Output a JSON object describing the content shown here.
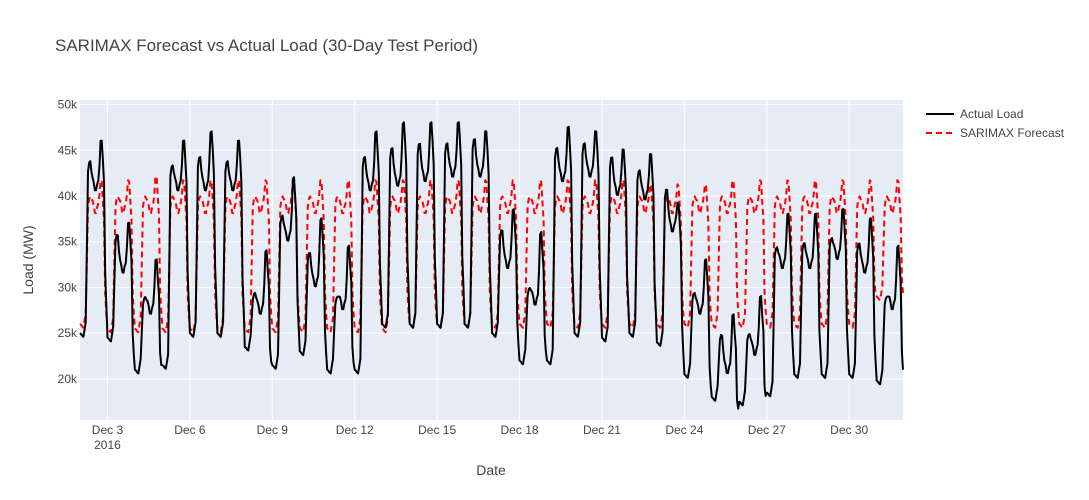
{
  "chart_data": {
    "type": "line",
    "title": "SARIMAX Forecast vs Actual Load (30-Day Test Period)",
    "xlabel": "Date",
    "ylabel": "Load (MW)",
    "x_start": "2016-12-02",
    "x_end": "2016-12-31T23:00",
    "ylim": [
      15500,
      50500
    ],
    "y_ticks": [
      20000,
      25000,
      30000,
      35000,
      40000,
      45000,
      50000
    ],
    "y_tick_labels": [
      "20k",
      "25k",
      "30k",
      "35k",
      "40k",
      "45k",
      "50k"
    ],
    "x_ticks": [
      "2016-12-03",
      "2016-12-06",
      "2016-12-09",
      "2016-12-12",
      "2016-12-15",
      "2016-12-18",
      "2016-12-21",
      "2016-12-24",
      "2016-12-27",
      "2016-12-30"
    ],
    "x_tick_labels": [
      "Dec 3",
      "Dec 6",
      "Dec 9",
      "Dec 12",
      "Dec 15",
      "Dec 18",
      "Dec 21",
      "Dec 24",
      "Dec 27",
      "Dec 30"
    ],
    "x_tick_year_label": "2016",
    "grid": true,
    "legend_position": "top-right",
    "series": [
      {
        "name": "Actual Load",
        "color": "#000000",
        "style": "solid",
        "daily": [
          {
            "date": "2016-12-02",
            "peak1": 44000,
            "mid": 40500,
            "peak2": 46500,
            "night": 25000
          },
          {
            "date": "2016-12-03",
            "peak1": 36000,
            "mid": 31500,
            "peak2": 37500,
            "night": 24500
          },
          {
            "date": "2016-12-04",
            "peak1": 29000,
            "mid": 27000,
            "peak2": 33500,
            "night": 21000
          },
          {
            "date": "2016-12-05",
            "peak1": 43500,
            "mid": 40500,
            "peak2": 46500,
            "night": 21500
          },
          {
            "date": "2016-12-06",
            "peak1": 44500,
            "mid": 40500,
            "peak2": 47500,
            "night": 25000
          },
          {
            "date": "2016-12-07",
            "peak1": 44000,
            "mid": 40500,
            "peak2": 46500,
            "night": 25000
          },
          {
            "date": "2016-12-08",
            "peak1": 29500,
            "mid": 27000,
            "peak2": 34500,
            "night": 23500
          },
          {
            "date": "2016-12-09",
            "peak1": 38000,
            "mid": 35000,
            "peak2": 42500,
            "night": 21500
          },
          {
            "date": "2016-12-10",
            "peak1": 34000,
            "mid": 30000,
            "peak2": 38000,
            "night": 23000
          },
          {
            "date": "2016-12-11",
            "peak1": 29000,
            "mid": 27500,
            "peak2": 35000,
            "night": 21000
          },
          {
            "date": "2016-12-12",
            "peak1": 44500,
            "mid": 40500,
            "peak2": 47500,
            "night": 21000
          },
          {
            "date": "2016-12-13",
            "peak1": 45500,
            "mid": 41000,
            "peak2": 48500,
            "night": 26000
          },
          {
            "date": "2016-12-14",
            "peak1": 46000,
            "mid": 41500,
            "peak2": 48500,
            "night": 26000
          },
          {
            "date": "2016-12-15",
            "peak1": 46000,
            "mid": 42000,
            "peak2": 48500,
            "night": 26000
          },
          {
            "date": "2016-12-16",
            "peak1": 46500,
            "mid": 42000,
            "peak2": 47500,
            "night": 26000
          },
          {
            "date": "2016-12-17",
            "peak1": 36500,
            "mid": 32000,
            "peak2": 39000,
            "night": 25000
          },
          {
            "date": "2016-12-18",
            "peak1": 30000,
            "mid": 28000,
            "peak2": 36500,
            "night": 22000
          },
          {
            "date": "2016-12-19",
            "peak1": 45500,
            "mid": 41500,
            "peak2": 48000,
            "night": 22000
          },
          {
            "date": "2016-12-20",
            "peak1": 46000,
            "mid": 42000,
            "peak2": 47500,
            "night": 25000
          },
          {
            "date": "2016-12-21",
            "peak1": 44500,
            "mid": 40000,
            "peak2": 45500,
            "night": 24500
          },
          {
            "date": "2016-12-22",
            "peak1": 43000,
            "mid": 39500,
            "peak2": 45000,
            "night": 25000
          },
          {
            "date": "2016-12-23",
            "peak1": 41000,
            "mid": 36000,
            "peak2": 39500,
            "night": 24000
          },
          {
            "date": "2016-12-24",
            "peak1": 29500,
            "mid": 27000,
            "peak2": 33500,
            "night": 20500
          },
          {
            "date": "2016-12-25",
            "peak1": 25000,
            "mid": 20500,
            "peak2": 27500,
            "night": 18000
          },
          {
            "date": "2016-12-26",
            "peak1": 25000,
            "mid": 22500,
            "peak2": 29500,
            "night": 17500
          },
          {
            "date": "2016-12-27",
            "peak1": 34500,
            "mid": 32000,
            "peak2": 38500,
            "night": 18500
          },
          {
            "date": "2016-12-28",
            "peak1": 35000,
            "mid": 32000,
            "peak2": 38500,
            "night": 20500
          },
          {
            "date": "2016-12-29",
            "peak1": 35500,
            "mid": 33000,
            "peak2": 39000,
            "night": 20500
          },
          {
            "date": "2016-12-30",
            "peak1": 35000,
            "mid": 31500,
            "peak2": 38000,
            "night": 20500
          },
          {
            "date": "2016-12-31",
            "peak1": 29000,
            "mid": 27500,
            "peak2": 35000,
            "night": 19800
          }
        ]
      },
      {
        "name": "SARIMAX Forecast",
        "color": "#ff0000",
        "style": "dashed",
        "daily": [
          {
            "date": "2016-12-02",
            "peak1": 40000,
            "mid": 38000,
            "peak2": 42000,
            "night": 26000
          },
          {
            "date": "2016-12-03",
            "peak1": 40000,
            "mid": 38000,
            "peak2": 42000,
            "night": 25500
          },
          {
            "date": "2016-12-04",
            "peak1": 40000,
            "mid": 38000,
            "peak2": 42500,
            "night": 25500
          },
          {
            "date": "2016-12-05",
            "peak1": 40000,
            "mid": 38000,
            "peak2": 42000,
            "night": 25500
          },
          {
            "date": "2016-12-06",
            "peak1": 40000,
            "mid": 38000,
            "peak2": 42000,
            "night": 25500
          },
          {
            "date": "2016-12-07",
            "peak1": 40000,
            "mid": 38000,
            "peak2": 42000,
            "night": 25500
          },
          {
            "date": "2016-12-08",
            "peak1": 40000,
            "mid": 38000,
            "peak2": 42000,
            "night": 25500
          },
          {
            "date": "2016-12-09",
            "peak1": 40000,
            "mid": 38000,
            "peak2": 42000,
            "night": 25500
          },
          {
            "date": "2016-12-10",
            "peak1": 40000,
            "mid": 38000,
            "peak2": 42000,
            "night": 25500
          },
          {
            "date": "2016-12-11",
            "peak1": 40000,
            "mid": 38000,
            "peak2": 42000,
            "night": 25500
          },
          {
            "date": "2016-12-12",
            "peak1": 40000,
            "mid": 38000,
            "peak2": 42000,
            "night": 25500
          },
          {
            "date": "2016-12-13",
            "peak1": 40000,
            "mid": 38000,
            "peak2": 42000,
            "night": 25500
          },
          {
            "date": "2016-12-14",
            "peak1": 40000,
            "mid": 38000,
            "peak2": 42000,
            "night": 26000
          },
          {
            "date": "2016-12-15",
            "peak1": 40000,
            "mid": 38000,
            "peak2": 42000,
            "night": 26000
          },
          {
            "date": "2016-12-16",
            "peak1": 40000,
            "mid": 38000,
            "peak2": 42000,
            "night": 26000
          },
          {
            "date": "2016-12-17",
            "peak1": 40000,
            "mid": 38000,
            "peak2": 42000,
            "night": 26000
          },
          {
            "date": "2016-12-18",
            "peak1": 40000,
            "mid": 38000,
            "peak2": 42000,
            "night": 26000
          },
          {
            "date": "2016-12-19",
            "peak1": 40000,
            "mid": 38000,
            "peak2": 42000,
            "night": 26000
          },
          {
            "date": "2016-12-20",
            "peak1": 40000,
            "mid": 38000,
            "peak2": 42000,
            "night": 26000
          },
          {
            "date": "2016-12-21",
            "peak1": 40000,
            "mid": 38000,
            "peak2": 42000,
            "night": 26000
          },
          {
            "date": "2016-12-22",
            "peak1": 40000,
            "mid": 38000,
            "peak2": 41500,
            "night": 26000
          },
          {
            "date": "2016-12-23",
            "peak1": 40000,
            "mid": 38000,
            "peak2": 41500,
            "night": 26000
          },
          {
            "date": "2016-12-24",
            "peak1": 40000,
            "mid": 38000,
            "peak2": 41500,
            "night": 26000
          },
          {
            "date": "2016-12-25",
            "peak1": 40000,
            "mid": 38000,
            "peak2": 42000,
            "night": 26000
          },
          {
            "date": "2016-12-26",
            "peak1": 40000,
            "mid": 38000,
            "peak2": 42000,
            "night": 26000
          },
          {
            "date": "2016-12-27",
            "peak1": 40000,
            "mid": 38000,
            "peak2": 42000,
            "night": 26000
          },
          {
            "date": "2016-12-28",
            "peak1": 40000,
            "mid": 38000,
            "peak2": 42000,
            "night": 26000
          },
          {
            "date": "2016-12-29",
            "peak1": 40000,
            "mid": 38000,
            "peak2": 42000,
            "night": 26000
          },
          {
            "date": "2016-12-30",
            "peak1": 40000,
            "mid": 38000,
            "peak2": 42000,
            "night": 26000
          },
          {
            "date": "2016-12-31",
            "peak1": 40000,
            "mid": 38000,
            "peak2": 42000,
            "night": 29000
          }
        ]
      }
    ]
  }
}
